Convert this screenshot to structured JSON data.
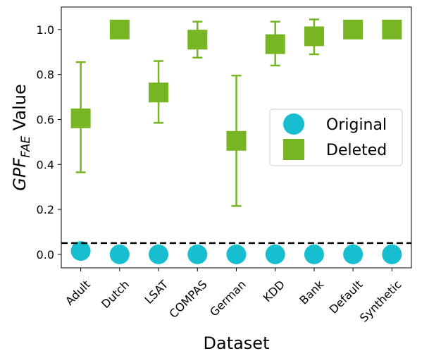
{
  "chart_data": {
    "type": "scatter",
    "title": "",
    "xlabel": "Dataset",
    "ylabel_prefix": "GPF",
    "ylabel_sub": "FAE",
    "ylabel_suffix": " Value",
    "categories": [
      "Adult",
      "Dutch",
      "LSAT",
      "COMPAS",
      "German",
      "KDD",
      "Bank",
      "Default",
      "Synthetic"
    ],
    "ylim": [
      -0.06,
      1.1
    ],
    "yticks": [
      0.0,
      0.2,
      0.4,
      0.6,
      0.8,
      1.0
    ],
    "ytick_labels": [
      "0.0",
      "0.2",
      "0.4",
      "0.6",
      "0.8",
      "1.0"
    ],
    "threshold_line": {
      "y": 0.05,
      "style": "dashed",
      "color": "#000000"
    },
    "legend_position": "center-right",
    "series": [
      {
        "name": "Original",
        "marker": "circle",
        "color": "#17becf",
        "values": [
          0.015,
          0.0,
          0.0,
          0.0,
          0.0,
          0.0,
          0.0,
          0.0,
          0.0
        ]
      },
      {
        "name": "Deleted",
        "marker": "square",
        "color": "#77b523",
        "values": [
          0.605,
          1.0,
          0.72,
          0.955,
          0.505,
          0.935,
          0.97,
          1.0,
          1.0
        ],
        "err_low": [
          0.365,
          null,
          0.585,
          0.875,
          0.215,
          0.84,
          0.89,
          null,
          null
        ],
        "err_high": [
          0.855,
          null,
          0.86,
          1.035,
          0.795,
          1.035,
          1.045,
          null,
          null
        ]
      }
    ]
  }
}
